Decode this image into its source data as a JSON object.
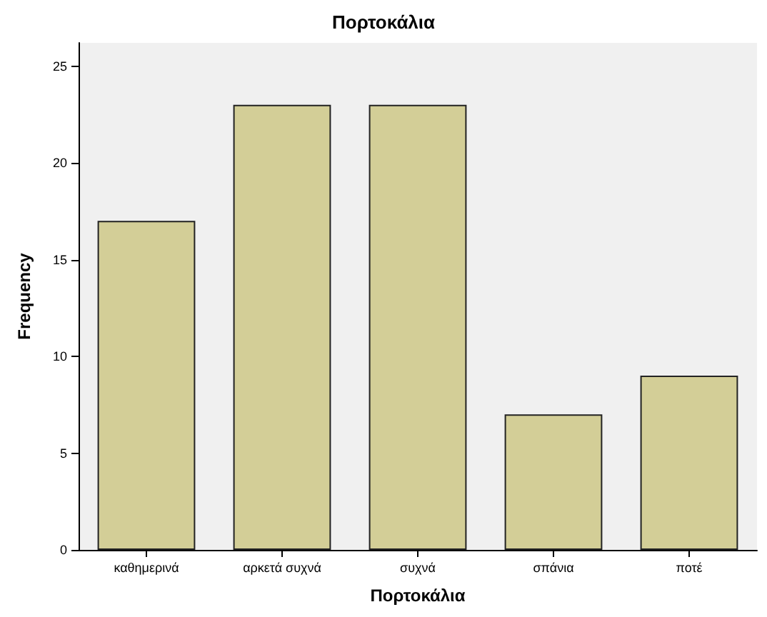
{
  "chart_data": {
    "type": "bar",
    "title": "Πορτοκάλια",
    "xlabel": "Πορτοκάλια",
    "ylabel": "Frequency",
    "categories": [
      "καθημερινά",
      "αρκετά συχνά",
      "συχνά",
      "σπάνια",
      "ποτέ"
    ],
    "values": [
      17,
      23,
      23,
      7,
      9
    ],
    "color": "#d3ce97",
    "ylim": [
      0,
      26.2
    ],
    "yticks": [
      0,
      5,
      10,
      15,
      20,
      25
    ],
    "grid": false
  }
}
